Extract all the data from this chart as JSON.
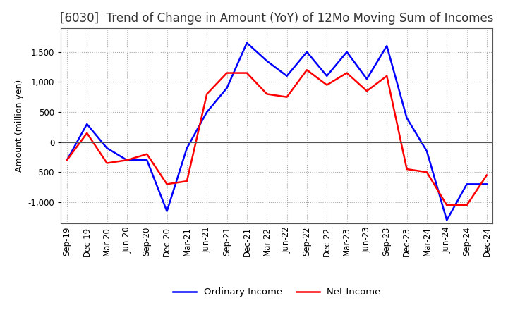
{
  "title": "[6030]  Trend of Change in Amount (YoY) of 12Mo Moving Sum of Incomes",
  "ylabel": "Amount (million yen)",
  "x_labels": [
    "Sep-19",
    "Dec-19",
    "Mar-20",
    "Jun-20",
    "Sep-20",
    "Dec-20",
    "Mar-21",
    "Jun-21",
    "Sep-21",
    "Dec-21",
    "Mar-22",
    "Jun-22",
    "Sep-22",
    "Dec-22",
    "Mar-23",
    "Jun-23",
    "Sep-23",
    "Dec-23",
    "Mar-24",
    "Jun-24",
    "Sep-24",
    "Dec-24"
  ],
  "ordinary_income": [
    -300,
    300,
    -100,
    -300,
    -300,
    -1150,
    -100,
    500,
    900,
    1650,
    1350,
    1100,
    1500,
    1100,
    1500,
    1050,
    1600,
    400,
    -150,
    -1300,
    -700,
    -700
  ],
  "net_income": [
    -300,
    150,
    -350,
    -300,
    -200,
    -700,
    -650,
    800,
    1150,
    1150,
    800,
    750,
    1200,
    950,
    1150,
    850,
    1100,
    -450,
    -500,
    -1050,
    -1050,
    -550
  ],
  "ordinary_color": "#0000ff",
  "net_color": "#ff0000",
  "ylim": [
    -1350,
    1900
  ],
  "yticks": [
    -1000,
    -500,
    0,
    500,
    1000,
    1500
  ],
  "background_color": "#ffffff",
  "grid_color": "#aaaaaa",
  "title_fontsize": 12,
  "axis_fontsize": 9,
  "tick_fontsize": 8.5
}
